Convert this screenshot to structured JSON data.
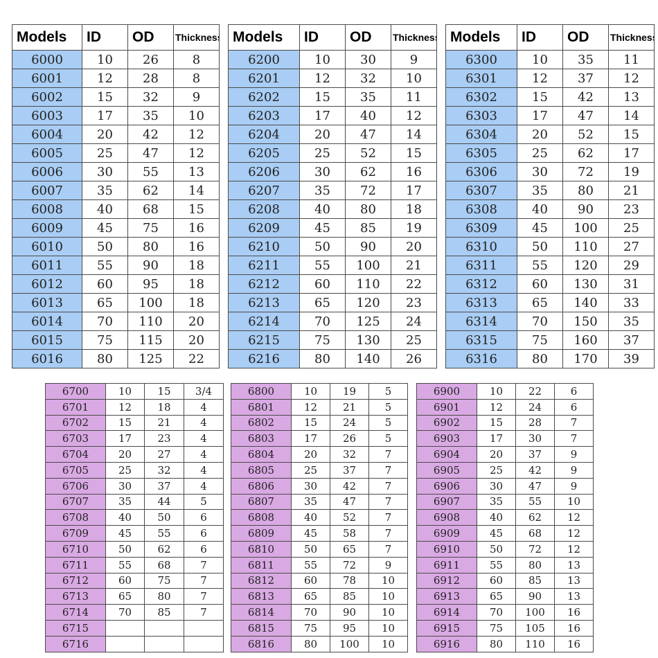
{
  "header": {
    "models": "Models",
    "id": "ID",
    "od": "OD",
    "thickness": "Thickness"
  },
  "tables": [
    {
      "rows": [
        [
          "6000",
          "10",
          "26",
          "8"
        ],
        [
          "6001",
          "12",
          "28",
          "8"
        ],
        [
          "6002",
          "15",
          "32",
          "9"
        ],
        [
          "6003",
          "17",
          "35",
          "10"
        ],
        [
          "6004",
          "20",
          "42",
          "12"
        ],
        [
          "6005",
          "25",
          "47",
          "12"
        ],
        [
          "6006",
          "30",
          "55",
          "13"
        ],
        [
          "6007",
          "35",
          "62",
          "14"
        ],
        [
          "6008",
          "40",
          "68",
          "15"
        ],
        [
          "6009",
          "45",
          "75",
          "16"
        ],
        [
          "6010",
          "50",
          "80",
          "16"
        ],
        [
          "6011",
          "55",
          "90",
          "18"
        ],
        [
          "6012",
          "60",
          "95",
          "18"
        ],
        [
          "6013",
          "65",
          "100",
          "18"
        ],
        [
          "6014",
          "70",
          "110",
          "20"
        ],
        [
          "6015",
          "75",
          "115",
          "20"
        ],
        [
          "6016",
          "80",
          "125",
          "22"
        ]
      ]
    },
    {
      "rows": [
        [
          "6200",
          "10",
          "30",
          "9"
        ],
        [
          "6201",
          "12",
          "32",
          "10"
        ],
        [
          "6202",
          "15",
          "35",
          "11"
        ],
        [
          "6203",
          "17",
          "40",
          "12"
        ],
        [
          "6204",
          "20",
          "47",
          "14"
        ],
        [
          "6205",
          "25",
          "52",
          "15"
        ],
        [
          "6206",
          "30",
          "62",
          "16"
        ],
        [
          "6207",
          "35",
          "72",
          "17"
        ],
        [
          "6208",
          "40",
          "80",
          "18"
        ],
        [
          "6209",
          "45",
          "85",
          "19"
        ],
        [
          "6210",
          "50",
          "90",
          "20"
        ],
        [
          "6211",
          "55",
          "100",
          "21"
        ],
        [
          "6212",
          "60",
          "110",
          "22"
        ],
        [
          "6213",
          "65",
          "120",
          "23"
        ],
        [
          "6214",
          "70",
          "125",
          "24"
        ],
        [
          "6215",
          "75",
          "130",
          "25"
        ],
        [
          "6216",
          "80",
          "140",
          "26"
        ]
      ]
    },
    {
      "rows": [
        [
          "6300",
          "10",
          "35",
          "11"
        ],
        [
          "6301",
          "12",
          "37",
          "12"
        ],
        [
          "6302",
          "15",
          "42",
          "13"
        ],
        [
          "6303",
          "17",
          "47",
          "14"
        ],
        [
          "6304",
          "20",
          "52",
          "15"
        ],
        [
          "6305",
          "25",
          "62",
          "17"
        ],
        [
          "6306",
          "30",
          "72",
          "19"
        ],
        [
          "6307",
          "35",
          "80",
          "21"
        ],
        [
          "6308",
          "40",
          "90",
          "23"
        ],
        [
          "6309",
          "45",
          "100",
          "25"
        ],
        [
          "6310",
          "50",
          "110",
          "27"
        ],
        [
          "6311",
          "55",
          "120",
          "29"
        ],
        [
          "6312",
          "60",
          "130",
          "31"
        ],
        [
          "6313",
          "65",
          "140",
          "33"
        ],
        [
          "6314",
          "70",
          "150",
          "35"
        ],
        [
          "6315",
          "75",
          "160",
          "37"
        ],
        [
          "6316",
          "80",
          "170",
          "39"
        ]
      ]
    },
    {
      "rows": [
        [
          "6700",
          "10",
          "15",
          "3/4"
        ],
        [
          "6701",
          "12",
          "18",
          "4"
        ],
        [
          "6702",
          "15",
          "21",
          "4"
        ],
        [
          "6703",
          "17",
          "23",
          "4"
        ],
        [
          "6704",
          "20",
          "27",
          "4"
        ],
        [
          "6705",
          "25",
          "32",
          "4"
        ],
        [
          "6706",
          "30",
          "37",
          "4"
        ],
        [
          "6707",
          "35",
          "44",
          "5"
        ],
        [
          "6708",
          "40",
          "50",
          "6"
        ],
        [
          "6709",
          "45",
          "55",
          "6"
        ],
        [
          "6710",
          "50",
          "62",
          "6"
        ],
        [
          "6711",
          "55",
          "68",
          "7"
        ],
        [
          "6712",
          "60",
          "75",
          "7"
        ],
        [
          "6713",
          "65",
          "80",
          "7"
        ],
        [
          "6714",
          "70",
          "85",
          "7"
        ],
        [
          "6715",
          "",
          "",
          ""
        ],
        [
          "6716",
          "",
          "",
          ""
        ]
      ]
    },
    {
      "rows": [
        [
          "6800",
          "10",
          "19",
          "5"
        ],
        [
          "6801",
          "12",
          "21",
          "5"
        ],
        [
          "6802",
          "15",
          "24",
          "5"
        ],
        [
          "6803",
          "17",
          "26",
          "5"
        ],
        [
          "6804",
          "20",
          "32",
          "7"
        ],
        [
          "6805",
          "25",
          "37",
          "7"
        ],
        [
          "6806",
          "30",
          "42",
          "7"
        ],
        [
          "6807",
          "35",
          "47",
          "7"
        ],
        [
          "6808",
          "40",
          "52",
          "7"
        ],
        [
          "6809",
          "45",
          "58",
          "7"
        ],
        [
          "6810",
          "50",
          "65",
          "7"
        ],
        [
          "6811",
          "55",
          "72",
          "9"
        ],
        [
          "6812",
          "60",
          "78",
          "10"
        ],
        [
          "6813",
          "65",
          "85",
          "10"
        ],
        [
          "6814",
          "70",
          "90",
          "10"
        ],
        [
          "6815",
          "75",
          "95",
          "10"
        ],
        [
          "6816",
          "80",
          "100",
          "10"
        ]
      ]
    },
    {
      "rows": [
        [
          "6900",
          "10",
          "22",
          "6"
        ],
        [
          "6901",
          "12",
          "24",
          "6"
        ],
        [
          "6902",
          "15",
          "28",
          "7"
        ],
        [
          "6903",
          "17",
          "30",
          "7"
        ],
        [
          "6904",
          "20",
          "37",
          "9"
        ],
        [
          "6905",
          "25",
          "42",
          "9"
        ],
        [
          "6906",
          "30",
          "47",
          "9"
        ],
        [
          "6907",
          "35",
          "55",
          "10"
        ],
        [
          "6908",
          "40",
          "62",
          "12"
        ],
        [
          "6909",
          "45",
          "68",
          "12"
        ],
        [
          "6910",
          "50",
          "72",
          "12"
        ],
        [
          "6911",
          "55",
          "80",
          "13"
        ],
        [
          "6912",
          "60",
          "85",
          "13"
        ],
        [
          "6913",
          "65",
          "90",
          "13"
        ],
        [
          "6914",
          "70",
          "100",
          "16"
        ],
        [
          "6915",
          "75",
          "105",
          "16"
        ],
        [
          "6916",
          "80",
          "110",
          "16"
        ]
      ]
    }
  ]
}
